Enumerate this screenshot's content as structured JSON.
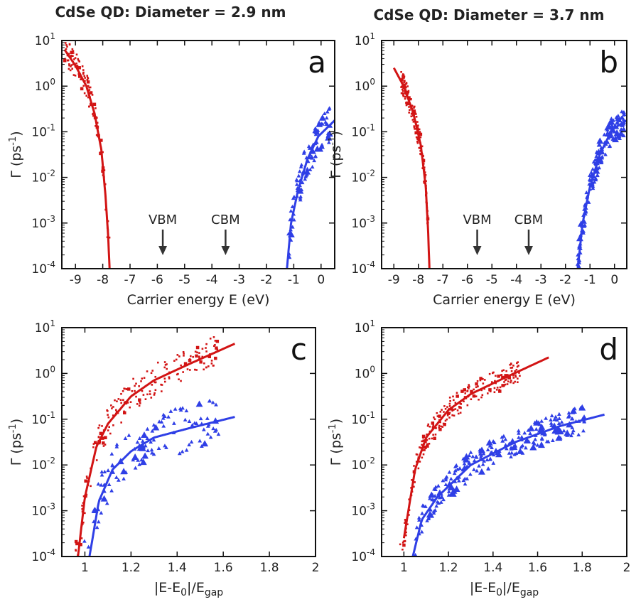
{
  "titles": [
    "CdSe QD: Diameter = 2.9 nm",
    "CdSe QD: Diameter = 3.7 nm"
  ],
  "colors": {
    "red": "#d21414",
    "blue": "#2f3fe6",
    "axis": "#111111"
  },
  "chart_data": [
    {
      "letter": "a",
      "type": "scatter",
      "xlabel": "Carrier energy E (eV)",
      "ylabel": "Γ (ps-1)",
      "xlim": [
        -9.5,
        0.5
      ],
      "ylim": [
        -4,
        1
      ],
      "yscale": "log",
      "xticks": [
        -9,
        -8,
        -7,
        -6,
        -5,
        -4,
        -3,
        -2,
        -1,
        0
      ],
      "yticks": [
        -4,
        -3,
        -2,
        -1,
        0,
        1
      ],
      "annotations": [
        {
          "text": "VBM",
          "x": -5.8
        },
        {
          "text": "CBM",
          "x": -3.5
        }
      ],
      "series": [
        {
          "color": "red",
          "marker": "square",
          "fit": [
            [
              -9.4,
              0.8
            ],
            [
              -9.0,
              0.45
            ],
            [
              -8.6,
              0.0
            ],
            [
              -8.3,
              -0.6
            ],
            [
              -8.05,
              -1.4
            ],
            [
              -7.9,
              -2.4
            ],
            [
              -7.8,
              -3.3
            ],
            [
              -7.75,
              -4.0
            ]
          ],
          "scatter": {
            "x": [
              -9.4,
              -7.75
            ],
            "fitRange": [
              -9.35,
              -7.8
            ],
            "n": 110,
            "noise": 0.3
          }
        },
        {
          "color": "blue",
          "marker": "triangle",
          "fit": [
            [
              -1.25,
              -4.0
            ],
            [
              -1.1,
              -3.0
            ],
            [
              -0.85,
              -2.3
            ],
            [
              -0.5,
              -1.6
            ],
            [
              -0.1,
              -1.1
            ],
            [
              0.5,
              -0.75
            ]
          ],
          "scatter": {
            "x": [
              -1.2,
              0.35
            ],
            "fitRange": [
              -1.2,
              0.4
            ],
            "n": 100,
            "noise": 0.4
          }
        }
      ]
    },
    {
      "letter": "b",
      "type": "scatter",
      "xlabel": "Carrier energy E (eV)",
      "ylabel": "Γ (ps-1)",
      "xlim": [
        -9.5,
        0.5
      ],
      "ylim": [
        -4,
        1
      ],
      "yscale": "log",
      "xticks": [
        -9,
        -8,
        -7,
        -6,
        -5,
        -4,
        -3,
        -2,
        -1,
        0
      ],
      "yticks": [
        -4,
        -3,
        -2,
        -1,
        0,
        1
      ],
      "annotations": [
        {
          "text": "VBM",
          "x": -5.6
        },
        {
          "text": "CBM",
          "x": -3.5
        }
      ],
      "series": [
        {
          "color": "red",
          "marker": "square",
          "fit": [
            [
              -9.0,
              0.4
            ],
            [
              -8.6,
              0.0
            ],
            [
              -8.2,
              -0.6
            ],
            [
              -7.9,
              -1.3
            ],
            [
              -7.7,
              -2.2
            ],
            [
              -7.6,
              -3.2
            ],
            [
              -7.55,
              -4.0
            ]
          ],
          "scatter": {
            "x": [
              -8.7,
              -7.6
            ],
            "fitRange": [
              -8.7,
              -7.6
            ],
            "n": 170,
            "noise": 0.25
          }
        },
        {
          "color": "blue",
          "marker": "triangle",
          "fit": [
            [
              -1.5,
              -4.0
            ],
            [
              -1.3,
              -3.0
            ],
            [
              -1.0,
              -2.2
            ],
            [
              -0.6,
              -1.5
            ],
            [
              -0.1,
              -0.95
            ],
            [
              0.5,
              -0.75
            ]
          ],
          "scatter": {
            "x": [
              -1.55,
              0.4
            ],
            "fitRange": [
              -1.5,
              0.45
            ],
            "n": 190,
            "noise": 0.3
          }
        }
      ]
    },
    {
      "letter": "c",
      "type": "scatter",
      "xlabel": "|E-E0|/Egap",
      "ylabel": "Γ (ps-1)",
      "xlim": [
        0.9,
        2.0
      ],
      "ylim": [
        -4,
        1
      ],
      "yscale": "log",
      "xticks": [
        1,
        1.2,
        1.4,
        1.6,
        1.8,
        2
      ],
      "yticks": [
        -4,
        -3,
        -2,
        -1,
        0,
        1
      ],
      "annotations": [],
      "series": [
        {
          "color": "red",
          "marker": "square",
          "fit": [
            [
              0.97,
              -4.0
            ],
            [
              1.0,
              -2.7
            ],
            [
              1.05,
              -1.6
            ],
            [
              1.1,
              -1.1
            ],
            [
              1.2,
              -0.5
            ],
            [
              1.3,
              -0.15
            ],
            [
              1.45,
              0.2
            ],
            [
              1.65,
              0.65
            ]
          ],
          "scatter": {
            "x": [
              0.96,
              1.58
            ],
            "fitRange": [
              0.97,
              1.6
            ],
            "n": 190,
            "noise": 0.35
          }
        },
        {
          "color": "blue",
          "marker": "triangle",
          "fit": [
            [
              1.02,
              -4.0
            ],
            [
              1.06,
              -2.8
            ],
            [
              1.12,
              -2.1
            ],
            [
              1.2,
              -1.7
            ],
            [
              1.3,
              -1.4
            ],
            [
              1.45,
              -1.2
            ],
            [
              1.65,
              -0.95
            ]
          ],
          "scatter": {
            "x": [
              0.98,
              1.58
            ],
            "fitRange": [
              1.02,
              1.6
            ],
            "n": 120,
            "noise": 0.5
          }
        }
      ]
    },
    {
      "letter": "d",
      "type": "scatter",
      "xlabel": "|E-E0|/Egap",
      "ylabel": "Γ (ps-1)",
      "xlim": [
        0.9,
        2.0
      ],
      "ylim": [
        -4,
        1
      ],
      "yscale": "log",
      "xticks": [
        1,
        1.2,
        1.4,
        1.6,
        1.8,
        2
      ],
      "yticks": [
        -4,
        -3,
        -2,
        -1,
        0,
        1
      ],
      "annotations": [],
      "series": [
        {
          "color": "red",
          "marker": "square",
          "fit": [
            [
              1.0,
              -3.6
            ],
            [
              1.05,
              -2.1
            ],
            [
              1.1,
              -1.4
            ],
            [
              1.2,
              -0.8
            ],
            [
              1.3,
              -0.45
            ],
            [
              1.45,
              -0.1
            ],
            [
              1.65,
              0.35
            ]
          ],
          "scatter": {
            "x": [
              0.98,
              1.52
            ],
            "fitRange": [
              1.0,
              1.55
            ],
            "n": 230,
            "noise": 0.25
          }
        },
        {
          "color": "blue",
          "marker": "triangle",
          "fit": [
            [
              1.04,
              -4.0
            ],
            [
              1.08,
              -3.2
            ],
            [
              1.15,
              -2.7
            ],
            [
              1.3,
              -2.0
            ],
            [
              1.5,
              -1.5
            ],
            [
              1.7,
              -1.15
            ],
            [
              1.9,
              -0.9
            ]
          ],
          "scatter": {
            "x": [
              1.05,
              1.82
            ],
            "fitRange": [
              1.05,
              1.85
            ],
            "n": 240,
            "noise": 0.3
          }
        }
      ]
    }
  ]
}
